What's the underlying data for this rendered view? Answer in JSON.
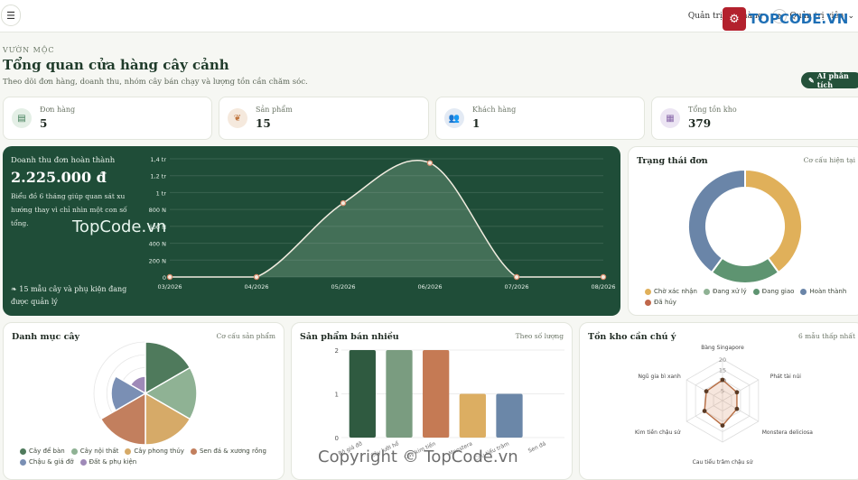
{
  "topbar": {
    "menu_icon": "hamburger-icon",
    "title": "Quản trị cửa hàng",
    "user": "Quản trị viên",
    "watermark_logo": "TOPCODE.VN"
  },
  "header": {
    "eyebrow": "VƯỜN MỘC",
    "title": "Tổng quan cửa hàng cây cảnh",
    "description": "Theo dõi đơn hàng, doanh thu, nhóm cây bán chạy và lượng tồn cần chăm sóc.",
    "ai_button": "AI phân tích"
  },
  "stats": [
    {
      "label": "Đơn hàng",
      "value": "5",
      "icon": "receipt-icon",
      "bg": "#e4efe6",
      "fg": "#3d7a55"
    },
    {
      "label": "Sản phẩm",
      "value": "15",
      "icon": "sprout-icon",
      "bg": "#f5e9dd",
      "fg": "#c0753e"
    },
    {
      "label": "Khách hàng",
      "value": "1",
      "icon": "users-icon",
      "bg": "#e3eaf4",
      "fg": "#5a7fa8"
    },
    {
      "label": "Tổng tồn kho",
      "value": "379",
      "icon": "boxes-icon",
      "bg": "#ece5f3",
      "fg": "#8766a8"
    }
  ],
  "revenue": {
    "label": "Doanh thu đơn hoàn thành",
    "value": "2.225.000 đ",
    "description": "Biểu đồ 6 tháng giúp quan sát xu hướng thay vì chỉ nhìn một con số tổng.",
    "footer": "15 mẫu cây và phụ kiện đang được quản lý",
    "footer_icon": "leaf-icon"
  },
  "watermarks": {
    "center": "TopCode.vn",
    "bottom": "Copyright © TopCode.vn"
  },
  "chart_data": [
    {
      "type": "area",
      "x": [
        "03/2026",
        "04/2026",
        "05/2026",
        "06/2026",
        "07/2026",
        "08/2026"
      ],
      "values": [
        0,
        0,
        875000,
        1350000,
        0,
        0
      ],
      "y_ticks": [
        "0",
        "200 N",
        "400 N",
        "600 N",
        "800 N",
        "1 tr",
        "1,2 tr",
        "1,4 tr"
      ],
      "ylim": [
        0,
        1400000
      ],
      "grid": true
    },
    {
      "type": "pie",
      "title": "Trạng thái đơn",
      "note": "Cơ cấu hiện tại",
      "categories": [
        "Chờ xác nhận",
        "Đang xử lý",
        "Đang giao",
        "Hoàn thành",
        "Đã hủy"
      ],
      "values": [
        2,
        0,
        1,
        2,
        0
      ],
      "colors": [
        "#e0b05a",
        "#8fb294",
        "#5e9471",
        "#6a85a8",
        "#c0674a"
      ]
    },
    {
      "type": "pie",
      "title": "Danh mục cây",
      "note": "Cơ cấu sản phẩm",
      "categories": [
        "Cây để bàn",
        "Cây nội thất",
        "Cây phong thủy",
        "Sen đá & xương rồng",
        "Chậu & giá đỡ",
        "Đất & phụ kiện"
      ],
      "values": [
        3,
        3,
        3,
        3,
        2,
        1
      ],
      "colors": [
        "#4f7a5c",
        "#8fb294",
        "#d6aa68",
        "#c27f5e",
        "#7a8fb4",
        "#9f8ab8"
      ]
    },
    {
      "type": "bar",
      "title": "Sản phẩm bán nhiều",
      "note": "Theo số lượng",
      "categories": [
        "Bộ giá đỡ",
        "Cây lưỡi hổ",
        "Cây kim tiền",
        "Monstera",
        "Cau tiểu trâm",
        "Sen đá"
      ],
      "values": [
        2,
        2,
        2,
        1,
        1,
        0
      ],
      "colors": [
        "#2f5a40",
        "#7a9c80",
        "#c57a54",
        "#dcae62",
        "#6b87a8",
        "#9ab"
      ],
      "y_ticks": [
        "0",
        "1",
        "2"
      ],
      "ylim": [
        0,
        2
      ]
    },
    {
      "type": "radar",
      "title": "Tồn kho cần chú ý",
      "note": "6 mẫu thấp nhất",
      "categories": [
        "Bàng Singapore",
        "Phát tài núi",
        "Monstera deliciosa",
        "Cau tiểu trâm chậu sứ",
        "Kim tiền chậu sứ",
        "Ngũ gia bì xanh"
      ],
      "values": [
        10,
        8,
        8,
        12,
        10,
        9
      ],
      "r_ticks": [
        "5",
        "10",
        "15",
        "20"
      ],
      "rmax": 20
    }
  ]
}
